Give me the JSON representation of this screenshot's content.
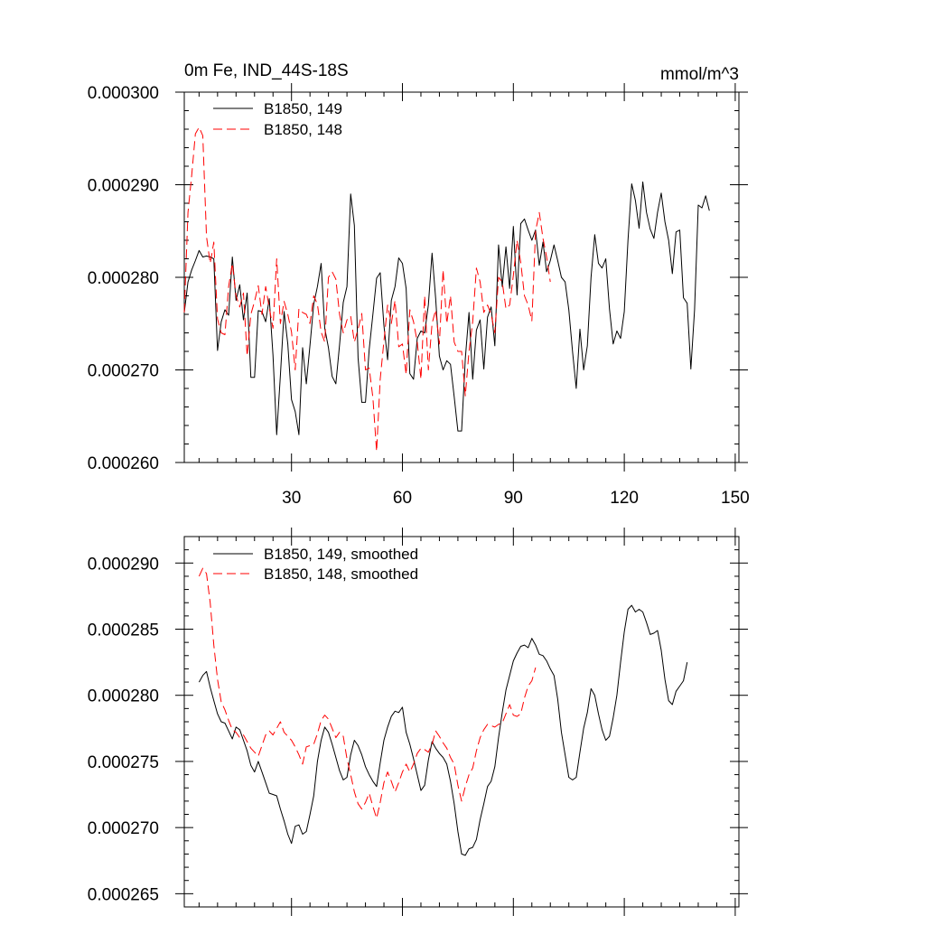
{
  "chart_data": [
    {
      "type": "line",
      "title_left": "0m Fe, IND_44S-18S",
      "title_right": "mmol/m^3",
      "xlim": [
        1,
        151
      ],
      "ylim": [
        0.00026,
        0.0003
      ],
      "xticks": [
        30,
        60,
        90,
        120,
        150
      ],
      "xtick_labels": [
        "30",
        "60",
        "90",
        "120",
        "150"
      ],
      "yticks": [
        0.00026,
        0.00027,
        0.00028,
        0.00029,
        0.0003
      ],
      "ytick_labels": [
        "0.000260",
        "0.000270",
        "0.000280",
        "0.000290",
        "0.000300"
      ],
      "series": [
        {
          "name": "B1850, 149",
          "color": "#000000",
          "dash": "solid",
          "x_start": 1,
          "values": [
            0.0002762,
            0.0002795,
            0.0002808,
            0.0002818,
            0.0002829,
            0.0002822,
            0.0002823,
            0.0002822,
            0.000282,
            0.0002721,
            0.0002752,
            0.0002765,
            0.0002759,
            0.0002822,
            0.0002775,
            0.0002792,
            0.0002754,
            0.0002783,
            0.0002692,
            0.0002692,
            0.0002764,
            0.0002763,
            0.0002752,
            0.0002777,
            0.0002716,
            0.000263,
            0.0002694,
            0.0002763,
            0.0002728,
            0.0002668,
            0.0002655,
            0.000263,
            0.0002724,
            0.0002685,
            0.0002727,
            0.0002771,
            0.000279,
            0.0002815,
            0.0002745,
            0.0002724,
            0.0002693,
            0.0002685,
            0.0002727,
            0.0002773,
            0.000279,
            0.000289,
            0.0002856,
            0.0002713,
            0.0002665,
            0.0002665,
            0.0002722,
            0.000276,
            0.0002799,
            0.0002805,
            0.0002748,
            0.0002711,
            0.0002775,
            0.000279,
            0.0002821,
            0.0002815,
            0.0002788,
            0.0002696,
            0.000269,
            0.0002734,
            0.0002742,
            0.000274,
            0.000277,
            0.0002826,
            0.0002777,
            0.0002715,
            0.00027,
            0.000271,
            0.0002706,
            0.0002671,
            0.0002634,
            0.0002634,
            0.0002712,
            0.0002762,
            0.000269,
            0.0002743,
            0.0002754,
            0.0002701,
            0.0002757,
            0.0002768,
            0.0002726,
            0.0002835,
            0.000279,
            0.0002833,
            0.0002788,
            0.0002855,
            0.0002781,
            0.0002858,
            0.0002863,
            0.0002851,
            0.000284,
            0.0002851,
            0.0002813,
            0.0002838,
            0.0002806,
            0.0002818,
            0.0002835,
            0.0002818,
            0.00028,
            0.0002795,
            0.0002765,
            0.000272,
            0.000268,
            0.0002744,
            0.00027,
            0.0002726,
            0.00028,
            0.0002846,
            0.0002815,
            0.000281,
            0.000282,
            0.0002766,
            0.0002728,
            0.0002742,
            0.0002734,
            0.0002763,
            0.000284,
            0.0002901,
            0.0002883,
            0.0002853,
            0.0002903,
            0.000287,
            0.0002852,
            0.0002842,
            0.000287,
            0.0002891,
            0.000286,
            0.000284,
            0.0002804,
            0.0002849,
            0.0002851,
            0.0002778,
            0.0002772,
            0.0002701,
            0.0002765,
            0.0002878,
            0.0002875,
            0.0002888,
            0.0002872
          ]
        },
        {
          "name": "B1850, 148",
          "color": "#ff0000",
          "dash": "dashed",
          "x_start": 1,
          "values": [
            0.0002762,
            0.000287,
            0.000291,
            0.0002955,
            0.0002962,
            0.0002953,
            0.0002844,
            0.0002815,
            0.0002838,
            0.0002755,
            0.000274,
            0.0002738,
            0.000279,
            0.0002815,
            0.000278,
            0.0002768,
            0.0002783,
            0.0002715,
            0.000276,
            0.0002774,
            0.0002791,
            0.000276,
            0.000279,
            0.0002767,
            0.0002745,
            0.000282,
            0.000275,
            0.0002774,
            0.000276,
            0.0002741,
            0.00027,
            0.0002766,
            0.0002762,
            0.000276,
            0.000275,
            0.000278,
            0.0002771,
            0.0002741,
            0.000273,
            0.00028,
            0.0002806,
            0.0002798,
            0.000276,
            0.000274,
            0.0002754,
            0.0002758,
            0.000273,
            0.0002744,
            0.0002761,
            0.00027,
            0.0002702,
            0.000267,
            0.0002612,
            0.000269,
            0.0002731,
            0.000277,
            0.000275,
            0.0002775,
            0.0002725,
            0.0002728,
            0.0002695,
            0.0002765,
            0.0002752,
            0.000273,
            0.000269,
            0.000278,
            0.00027,
            0.000275,
            0.0002765,
            0.0002728,
            0.0002808,
            0.000275,
            0.000278,
            0.000273,
            0.000272,
            0.000272,
            0.0002672,
            0.000272,
            0.0002752,
            0.000281,
            0.0002795,
            0.0002762,
            0.000277,
            0.000276,
            0.000274,
            0.00028,
            0.0002795,
            0.0002766,
            0.000277,
            0.0002802,
            0.000284,
            0.0002816,
            0.000278,
            0.000277,
            0.0002753,
            0.000285,
            0.000287,
            0.0002842,
            0.0002822,
            0.0002795
          ]
        }
      ]
    },
    {
      "type": "line",
      "xlim": [
        1,
        151
      ],
      "ylim": [
        0.000264,
        0.000292
      ],
      "xticks": [
        30,
        60,
        90,
        120,
        150
      ],
      "yticks": [
        0.000265,
        0.00027,
        0.000275,
        0.00028,
        0.000285,
        0.00029
      ],
      "ytick_labels": [
        "0.000265",
        "0.000270",
        "0.000275",
        "0.000280",
        "0.000285",
        "0.000290"
      ],
      "series": [
        {
          "name": "B1850, 149, smoothed",
          "color": "#000000",
          "dash": "solid",
          "x_start": 5,
          "values": [
            0.000281,
            0.0002815,
            0.0002818,
            0.0002806,
            0.0002796,
            0.0002786,
            0.000278,
            0.0002779,
            0.0002773,
            0.0002767,
            0.0002776,
            0.0002774,
            0.0002766,
            0.0002758,
            0.0002747,
            0.0002742,
            0.000275,
            0.0002742,
            0.0002734,
            0.0002726,
            0.0002725,
            0.0002724,
            0.0002714,
            0.0002705,
            0.0002695,
            0.0002688,
            0.0002701,
            0.0002702,
            0.0002695,
            0.0002697,
            0.000271,
            0.0002724,
            0.000275,
            0.0002766,
            0.0002776,
            0.0002772,
            0.0002763,
            0.0002753,
            0.0002743,
            0.0002736,
            0.0002738,
            0.0002755,
            0.0002766,
            0.0002762,
            0.0002755,
            0.0002746,
            0.000274,
            0.0002735,
            0.0002731,
            0.0002749,
            0.0002766,
            0.0002776,
            0.0002784,
            0.0002788,
            0.0002787,
            0.0002791,
            0.0002772,
            0.0002763,
            0.0002752,
            0.000274,
            0.0002728,
            0.0002732,
            0.0002751,
            0.0002765,
            0.000276,
            0.0002756,
            0.0002753,
            0.0002748,
            0.0002735,
            0.0002718,
            0.0002697,
            0.000268,
            0.0002679,
            0.0002684,
            0.0002685,
            0.0002691,
            0.0002706,
            0.0002718,
            0.0002731,
            0.0002735,
            0.0002746,
            0.0002768,
            0.0002787,
            0.0002804,
            0.0002815,
            0.0002826,
            0.0002832,
            0.0002837,
            0.0002838,
            0.0002836,
            0.0002843,
            0.0002838,
            0.0002831,
            0.000283,
            0.0002826,
            0.000282,
            0.0002815,
            0.0002797,
            0.0002772,
            0.0002755,
            0.0002738,
            0.0002736,
            0.0002738,
            0.0002757,
            0.0002775,
            0.0002787,
            0.0002805,
            0.00028,
            0.0002786,
            0.0002774,
            0.0002766,
            0.0002769,
            0.0002783,
            0.00028,
            0.0002825,
            0.0002848,
            0.0002865,
            0.0002868,
            0.0002863,
            0.0002865,
            0.0002863,
            0.0002855,
            0.0002846,
            0.0002847,
            0.0002849,
            0.0002834,
            0.0002812,
            0.0002796,
            0.0002793,
            0.0002803,
            0.0002807,
            0.0002811,
            0.0002825
          ]
        },
        {
          "name": "B1850, 148, smoothed",
          "color": "#ff0000",
          "dash": "dashed",
          "x_start": 5,
          "values": [
            0.000289,
            0.0002896,
            0.0002892,
            0.000287,
            0.0002838,
            0.0002812,
            0.0002795,
            0.0002789,
            0.0002781,
            0.0002774,
            0.0002772,
            0.0002768,
            0.000277,
            0.0002765,
            0.000276,
            0.0002757,
            0.0002754,
            0.0002762,
            0.000277,
            0.0002773,
            0.000277,
            0.0002775,
            0.000278,
            0.0002772,
            0.0002769,
            0.0002766,
            0.0002761,
            0.0002755,
            0.0002748,
            0.0002761,
            0.0002762,
            0.0002763,
            0.0002771,
            0.0002781,
            0.0002785,
            0.0002782,
            0.0002775,
            0.0002768,
            0.0002772,
            0.0002769,
            0.0002752,
            0.000274,
            0.0002727,
            0.0002718,
            0.0002714,
            0.0002719,
            0.0002726,
            0.0002716,
            0.0002707,
            0.0002719,
            0.0002734,
            0.0002742,
            0.0002735,
            0.0002727,
            0.0002734,
            0.0002742,
            0.0002748,
            0.0002742,
            0.0002748,
            0.0002756,
            0.000276,
            0.0002759,
            0.0002757,
            0.0002763,
            0.0002773,
            0.0002769,
            0.0002764,
            0.000276,
            0.0002753,
            0.0002748,
            0.0002732,
            0.000272,
            0.0002731,
            0.000274,
            0.0002745,
            0.0002758,
            0.0002768,
            0.0002774,
            0.0002778,
            0.0002777,
            0.0002776,
            0.0002778,
            0.0002779,
            0.0002786,
            0.0002793,
            0.0002785,
            0.0002784,
            0.0002786,
            0.0002798,
            0.0002807,
            0.0002811,
            0.0002821
          ]
        }
      ]
    }
  ]
}
